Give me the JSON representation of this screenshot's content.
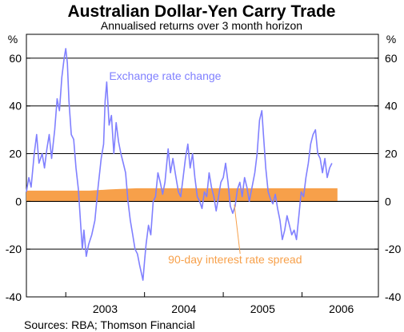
{
  "chart_data": {
    "type": "line",
    "title": "Australian Dollar-Yen Carry Trade",
    "subtitle": "Annualised returns over 3 month horizon",
    "ylabel_left": "%",
    "ylabel_right": "%",
    "ylim": [
      -40,
      70
    ],
    "yticks": [
      -40,
      -20,
      0,
      20,
      40,
      60
    ],
    "xlim": [
      2002.5,
      2006.97
    ],
    "x_categories": [
      "2003",
      "2004",
      "2005",
      "2006"
    ],
    "grid": true,
    "source": "Sources: RBA; Thomson Financial",
    "series": [
      {
        "name": "Exchange rate change",
        "kind": "line",
        "color": "#8080ff",
        "points": [
          [
            2002.5,
            4
          ],
          [
            2002.53,
            10
          ],
          [
            2002.56,
            6
          ],
          [
            2002.6,
            20
          ],
          [
            2002.63,
            28
          ],
          [
            2002.66,
            16
          ],
          [
            2002.7,
            20
          ],
          [
            2002.73,
            14
          ],
          [
            2002.76,
            22
          ],
          [
            2002.79,
            28
          ],
          [
            2002.82,
            18
          ],
          [
            2002.86,
            30
          ],
          [
            2002.89,
            43
          ],
          [
            2002.92,
            38
          ],
          [
            2002.95,
            52
          ],
          [
            2002.98,
            60
          ],
          [
            2003.0,
            64
          ],
          [
            2003.02,
            58
          ],
          [
            2003.04,
            42
          ],
          [
            2003.07,
            28
          ],
          [
            2003.1,
            26
          ],
          [
            2003.13,
            14
          ],
          [
            2003.16,
            5
          ],
          [
            2003.19,
            -10
          ],
          [
            2003.21,
            -20
          ],
          [
            2003.23,
            -12
          ],
          [
            2003.26,
            -23
          ],
          [
            2003.29,
            -18
          ],
          [
            2003.33,
            -14
          ],
          [
            2003.37,
            -8
          ],
          [
            2003.41,
            6
          ],
          [
            2003.45,
            18
          ],
          [
            2003.48,
            24
          ],
          [
            2003.5,
            42
          ],
          [
            2003.52,
            50
          ],
          [
            2003.55,
            32
          ],
          [
            2003.58,
            36
          ],
          [
            2003.61,
            20
          ],
          [
            2003.64,
            33
          ],
          [
            2003.67,
            25
          ],
          [
            2003.7,
            20
          ],
          [
            2003.73,
            16
          ],
          [
            2003.76,
            12
          ],
          [
            2003.79,
            0
          ],
          [
            2003.82,
            -8
          ],
          [
            2003.85,
            -14
          ],
          [
            2003.88,
            -20
          ],
          [
            2003.91,
            -22
          ],
          [
            2003.94,
            -27
          ],
          [
            2003.96,
            -30
          ],
          [
            2003.98,
            -33
          ],
          [
            2004.0,
            -25
          ],
          [
            2004.02,
            -18
          ],
          [
            2004.05,
            -10
          ],
          [
            2004.08,
            -14
          ],
          [
            2004.11,
            0
          ],
          [
            2004.14,
            2
          ],
          [
            2004.17,
            12
          ],
          [
            2004.2,
            8
          ],
          [
            2004.23,
            3
          ],
          [
            2004.26,
            8
          ],
          [
            2004.3,
            22
          ],
          [
            2004.33,
            12
          ],
          [
            2004.36,
            18
          ],
          [
            2004.4,
            10
          ],
          [
            2004.43,
            4
          ],
          [
            2004.46,
            2
          ],
          [
            2004.49,
            10
          ],
          [
            2004.52,
            18
          ],
          [
            2004.55,
            24
          ],
          [
            2004.58,
            14
          ],
          [
            2004.61,
            20
          ],
          [
            2004.64,
            10
          ],
          [
            2004.67,
            2
          ],
          [
            2004.7,
            0
          ],
          [
            2004.73,
            -3
          ],
          [
            2004.76,
            4
          ],
          [
            2004.79,
            2
          ],
          [
            2004.82,
            12
          ],
          [
            2004.85,
            6
          ],
          [
            2004.88,
            2
          ],
          [
            2004.91,
            -4
          ],
          [
            2004.94,
            2
          ],
          [
            2004.97,
            8
          ],
          [
            2005.0,
            10
          ],
          [
            2005.03,
            16
          ],
          [
            2005.06,
            8
          ],
          [
            2005.09,
            -2
          ],
          [
            2005.12,
            -5
          ],
          [
            2005.15,
            -2
          ],
          [
            2005.18,
            5
          ],
          [
            2005.21,
            8
          ],
          [
            2005.24,
            2
          ],
          [
            2005.27,
            10
          ],
          [
            2005.3,
            6
          ],
          [
            2005.33,
            0
          ],
          [
            2005.36,
            5
          ],
          [
            2005.4,
            12
          ],
          [
            2005.43,
            20
          ],
          [
            2005.46,
            34
          ],
          [
            2005.49,
            38
          ],
          [
            2005.51,
            28
          ],
          [
            2005.54,
            14
          ],
          [
            2005.57,
            4
          ],
          [
            2005.6,
            1
          ],
          [
            2005.63,
            -1
          ],
          [
            2005.66,
            3
          ],
          [
            2005.69,
            -3
          ],
          [
            2005.72,
            -8
          ],
          [
            2005.75,
            -16
          ],
          [
            2005.78,
            -12
          ],
          [
            2005.81,
            -6
          ],
          [
            2005.84,
            -10
          ],
          [
            2005.87,
            -14
          ],
          [
            2005.9,
            -12
          ],
          [
            2005.93,
            -16
          ],
          [
            2005.96,
            -6
          ],
          [
            2005.99,
            4
          ],
          [
            2006.02,
            2
          ],
          [
            2006.05,
            10
          ],
          [
            2006.08,
            16
          ],
          [
            2006.11,
            24
          ],
          [
            2006.14,
            28
          ],
          [
            2006.17,
            30
          ],
          [
            2006.2,
            20
          ],
          [
            2006.23,
            18
          ],
          [
            2006.26,
            12
          ],
          [
            2006.29,
            18
          ],
          [
            2006.32,
            10
          ],
          [
            2006.35,
            14
          ],
          [
            2006.38,
            16
          ]
        ]
      },
      {
        "name": "90-day interest rate spread",
        "kind": "area",
        "color": "#f7a04a",
        "points": [
          [
            2002.5,
            4.5
          ],
          [
            2003.0,
            4.5
          ],
          [
            2003.3,
            4.5
          ],
          [
            2003.55,
            5.0
          ],
          [
            2003.9,
            5.5
          ],
          [
            2004.5,
            5.5
          ],
          [
            2005.0,
            5.5
          ],
          [
            2005.5,
            5.5
          ],
          [
            2006.0,
            5.5
          ],
          [
            2006.45,
            5.5
          ]
        ]
      }
    ],
    "annotations": [
      {
        "text": "Exchange rate change",
        "series": "Exchange rate change",
        "at": [
          2003.55,
          51
        ],
        "points_to": null
      },
      {
        "text": "90-day interest rate spread",
        "series": "90-day interest rate spread",
        "at": [
          2004.3,
          -26
        ],
        "points_to": [
          2005.14,
          0
        ]
      }
    ]
  }
}
